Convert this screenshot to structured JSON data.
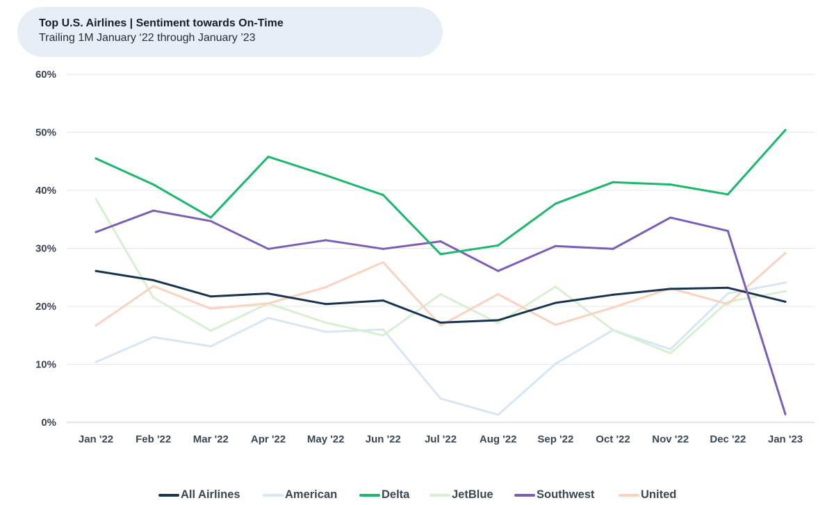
{
  "title": "Top U.S. Airlines | Sentiment towards On-Time",
  "subtitle": "Trailing 1M January ‘22 through January ’23",
  "chart_data": {
    "type": "line",
    "title": "Top U.S. Airlines | Sentiment towards On-Time",
    "subtitle": "Trailing 1M January ‘22 through January ’23",
    "categories": [
      "Jan '22",
      "Feb '22",
      "Mar '22",
      "Apr '22",
      "May '22",
      "Jun '22",
      "Jul '22",
      "Aug '22",
      "Sep '22",
      "Oct '22",
      "Nov '22",
      "Dec '22",
      "Jan '23"
    ],
    "ylim": [
      0,
      60
    ],
    "yticks": [
      0,
      10,
      20,
      30,
      40,
      50,
      60
    ],
    "ytick_labels": [
      "0%",
      "10%",
      "20%",
      "30%",
      "40%",
      "50%",
      "60%"
    ],
    "grid": "horizontal",
    "legend_position": "bottom",
    "series": [
      {
        "name": "American",
        "color": "#d6e6f5",
        "values": [
          10.4,
          14.7,
          13.1,
          18.0,
          15.6,
          16.0,
          4.1,
          1.3,
          10.1,
          15.9,
          12.6,
          22.2,
          24.1
        ]
      },
      {
        "name": "JetBlue",
        "color": "#d7f0cf",
        "values": [
          38.5,
          21.5,
          15.8,
          20.5,
          17.2,
          15.0,
          22.1,
          17.1,
          23.4,
          15.9,
          11.9,
          20.8,
          22.6
        ]
      },
      {
        "name": "United",
        "color": "#fbd2be",
        "values": [
          16.7,
          23.5,
          19.6,
          20.5,
          23.3,
          27.6,
          16.7,
          22.1,
          16.8,
          19.8,
          23.1,
          20.4,
          29.2
        ]
      },
      {
        "name": "All Airlines",
        "color": "#163450",
        "values": [
          26.1,
          24.5,
          21.7,
          22.2,
          20.4,
          21.0,
          17.2,
          17.6,
          20.6,
          22.0,
          23.0,
          23.2,
          20.8
        ]
      },
      {
        "name": "Southwest",
        "color": "#7b5db5",
        "values": [
          32.8,
          36.5,
          34.7,
          29.9,
          31.4,
          29.9,
          31.2,
          26.1,
          30.4,
          29.9,
          35.3,
          33.0,
          1.4
        ]
      },
      {
        "name": "Delta",
        "color": "#19b86c",
        "values": [
          45.5,
          41.0,
          35.3,
          45.8,
          42.6,
          39.2,
          29.0,
          30.5,
          37.7,
          41.4,
          41.0,
          39.3,
          50.4
        ]
      }
    ],
    "legend_order": [
      "All Airlines",
      "American",
      "Delta",
      "JetBlue",
      "Southwest",
      "United"
    ]
  }
}
